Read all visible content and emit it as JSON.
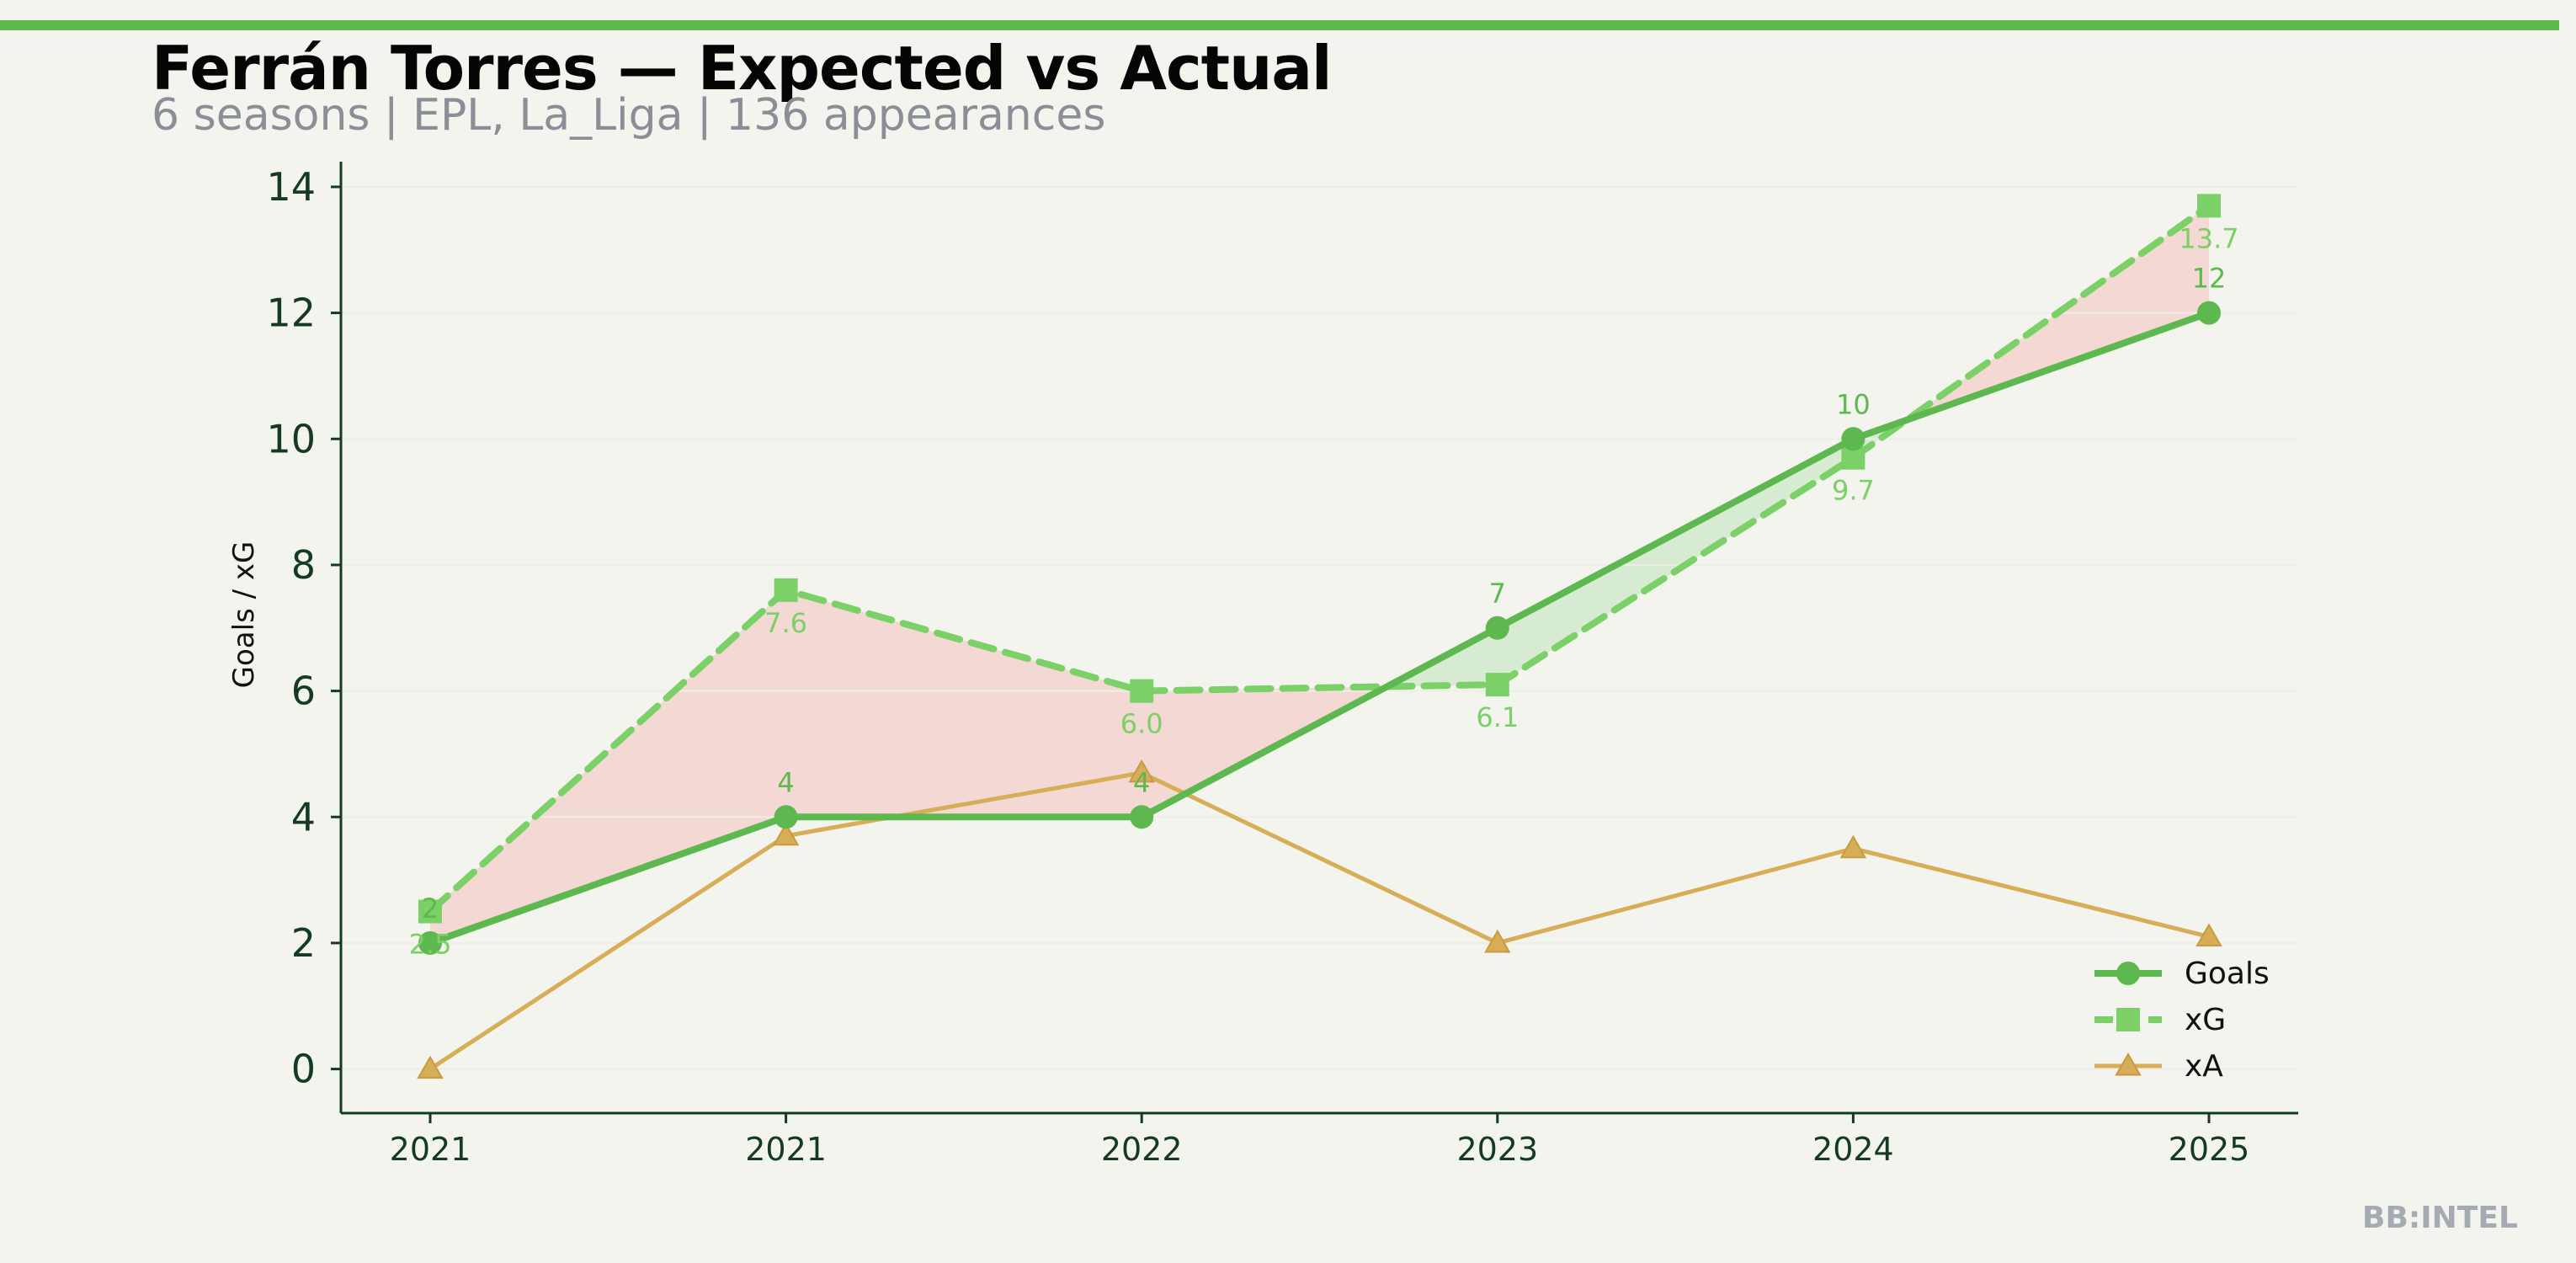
{
  "title": "Ferrán Torres — Expected vs Actual",
  "subtitle": "6 seasons | EPL, La_Liga | 136 appearances",
  "watermark": "BB:INTEL",
  "colors": {
    "background": "#f4f4ee",
    "accent_bar": "#5cb84f",
    "goals": "#5cb84f",
    "xg": "#7bd068",
    "xa": "#d7ad58",
    "underperform_fill": "#f4d8d3",
    "overperform_fill": "#d7ead2",
    "axis": "#143a22"
  },
  "chart_data": {
    "type": "line",
    "title": "Ferrán Torres — Expected vs Actual",
    "subtitle": "6 seasons | EPL, La_Liga | 136 appearances",
    "xlabel": "",
    "ylabel": "Goals / xG",
    "categories": [
      "2021",
      "2021",
      "2022",
      "2023",
      "2024",
      "2025"
    ],
    "ylim": [
      -0.7,
      14.4
    ],
    "yticks": [
      0,
      2,
      4,
      6,
      8,
      10,
      12,
      14
    ],
    "grid": false,
    "legend_position": "bottom-right",
    "series": [
      {
        "name": "Goals",
        "marker": "circle",
        "line": "solid",
        "values": [
          2,
          4,
          4,
          7,
          10,
          12
        ],
        "labels": [
          "2",
          "4",
          "4",
          "7",
          "10",
          "12"
        ]
      },
      {
        "name": "xG",
        "marker": "square",
        "line": "dashed",
        "values": [
          2.5,
          7.6,
          6.0,
          6.1,
          9.7,
          13.7
        ],
        "labels": [
          "2.5",
          "7.6",
          "6.0",
          "6.1",
          "9.7",
          "13.7"
        ]
      },
      {
        "name": "xA",
        "marker": "triangle",
        "line": "solid",
        "values": [
          0.0,
          3.7,
          4.7,
          2.0,
          3.5,
          2.1
        ]
      }
    ]
  }
}
